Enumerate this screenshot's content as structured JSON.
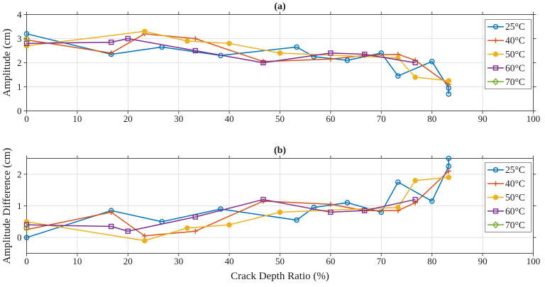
{
  "figure": {
    "background": "#ffffff",
    "axis_color": "#4d4d4d",
    "grid_color": "#e2e2e2",
    "text_color": "#1a1a1a",
    "legend_border_color": "#8c8c8c",
    "legend_background": "#ffffff"
  },
  "chart_data": [
    {
      "type": "line",
      "title": "(a)",
      "xlabel": "",
      "ylabel": "Amplitude (cm)",
      "xlim": [
        0,
        100
      ],
      "ylim": [
        0,
        4
      ],
      "xticks": [
        0,
        10,
        20,
        30,
        40,
        50,
        60,
        70,
        80,
        90,
        100
      ],
      "yticks": [
        0,
        1,
        2,
        3,
        4
      ],
      "grid": true,
      "legend_position": "top-right",
      "series": [
        {
          "name": "25°C",
          "color": "#0072BD",
          "marker": "circle-open",
          "x": [
            0,
            16.7,
            26.7,
            38.3,
            53.3,
            56.7,
            63.3,
            70,
            73.3,
            80,
            83.3,
            83.3
          ],
          "y": [
            3.2,
            2.35,
            2.65,
            2.3,
            2.65,
            2.25,
            2.1,
            2.4,
            1.45,
            2.05,
            0.95,
            0.7
          ]
        },
        {
          "name": "40°C",
          "color": "#D95319",
          "marker": "plus",
          "x": [
            0,
            16.7,
            23.3,
            33.3,
            46.7,
            60,
            66.7,
            73.3,
            76.7,
            83.3
          ],
          "y": [
            2.95,
            2.4,
            3.2,
            3.0,
            2.05,
            2.15,
            2.3,
            2.35,
            2.1,
            1.1
          ]
        },
        {
          "name": "50°C",
          "color": "#EDB120",
          "marker": "circle-filled",
          "x": [
            0,
            23.3,
            31.7,
            40,
            50,
            73.3,
            76.7,
            83.3
          ],
          "y": [
            2.7,
            3.3,
            2.9,
            2.8,
            2.4,
            2.2,
            1.4,
            1.25
          ]
        },
        {
          "name": "60°C",
          "color": "#7E2F8E",
          "marker": "square-open",
          "x": [
            0,
            16.7,
            20,
            33.3,
            46.7,
            60,
            66.7,
            76.7
          ],
          "y": [
            2.8,
            2.85,
            3.0,
            2.5,
            2.0,
            2.4,
            2.35,
            2.0
          ]
        },
        {
          "name": "70°C",
          "color": "#77AC30",
          "marker": "diamond-open",
          "x": [
            0
          ],
          "y": [
            3.0
          ]
        }
      ]
    },
    {
      "type": "line",
      "title": "(b)",
      "xlabel": "Crack Depth Ratio (%)",
      "ylabel": "Amplitude Difference (cm)",
      "xlim": [
        0,
        100
      ],
      "ylim": [
        -0.5,
        2.5
      ],
      "xticks": [
        0,
        10,
        20,
        30,
        40,
        50,
        60,
        70,
        80,
        90,
        100
      ],
      "yticks": [
        0,
        1,
        2
      ],
      "grid": true,
      "legend_position": "top-right",
      "series": [
        {
          "name": "25°C",
          "color": "#0072BD",
          "marker": "circle-open",
          "x": [
            0,
            16.7,
            26.7,
            38.3,
            53.3,
            56.7,
            63.3,
            70,
            73.3,
            80,
            83.3,
            83.3
          ],
          "y": [
            0.0,
            0.85,
            0.5,
            0.9,
            0.55,
            0.95,
            1.1,
            0.8,
            1.75,
            1.15,
            2.25,
            2.5
          ]
        },
        {
          "name": "40°C",
          "color": "#D95319",
          "marker": "plus",
          "x": [
            0,
            16.7,
            23.3,
            33.3,
            46.7,
            60,
            66.7,
            73.3,
            76.7,
            83.3
          ],
          "y": [
            0.25,
            0.8,
            0.05,
            0.2,
            1.15,
            1.05,
            0.85,
            0.85,
            1.1,
            2.1
          ]
        },
        {
          "name": "50°C",
          "color": "#EDB120",
          "marker": "circle-filled",
          "x": [
            0,
            23.3,
            31.7,
            40,
            50,
            73.3,
            76.7,
            83.3
          ],
          "y": [
            0.5,
            -0.1,
            0.3,
            0.4,
            0.8,
            0.95,
            1.8,
            1.9
          ]
        },
        {
          "name": "60°C",
          "color": "#7E2F8E",
          "marker": "square-open",
          "x": [
            0,
            16.7,
            20,
            33.3,
            46.7,
            60,
            66.7,
            76.7
          ],
          "y": [
            0.4,
            0.35,
            0.2,
            0.65,
            1.2,
            0.8,
            0.85,
            1.2
          ]
        },
        {
          "name": "70°C",
          "color": "#77AC30",
          "marker": "diamond-open",
          "x": [
            0
          ],
          "y": [
            0.3
          ]
        }
      ]
    }
  ]
}
